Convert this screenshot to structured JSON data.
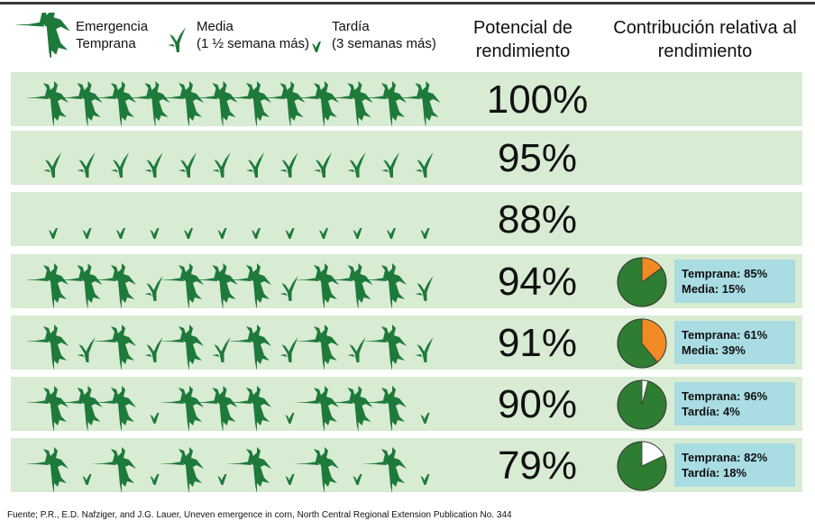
{
  "legend": [
    {
      "type": "E",
      "line1": "Emergencia",
      "line2": "Temprana"
    },
    {
      "type": "M",
      "line1": "Media",
      "line2": "(1 ½ semana más)"
    },
    {
      "type": "L",
      "line1": "Tardía",
      "line2": "(3 semanas más)"
    }
  ],
  "headers": {
    "potential": "Potencial de rendimiento",
    "contribution": "Contribución relativa al rendimiento"
  },
  "colors": {
    "row_bg": "#d8ebd3",
    "plant": "#1e7a3a",
    "pie_green": "#2e7d32",
    "pie_orange": "#f08a24",
    "pie_white": "#ffffff",
    "info_bg": "#a9dce3"
  },
  "rows": [
    {
      "plants": "EEEEEEEEEEEE",
      "yield": "100%"
    },
    {
      "plants": "MMMMMMMMMMMM",
      "yield": "95%"
    },
    {
      "plants": "LLLLLLLLLLLL",
      "yield": "88%"
    },
    {
      "plants": "EEEMEEEMEEEM",
      "yield": "94%",
      "pie": {
        "early": 85,
        "other": 15,
        "other_type": "media"
      },
      "info": [
        "Temprana: 85%",
        "Media: 15%"
      ]
    },
    {
      "plants": "EMEMEMEMEMEM",
      "yield": "91%",
      "pie": {
        "early": 61,
        "other": 39,
        "other_type": "media"
      },
      "info": [
        "Temprana: 61%",
        "Media: 39%"
      ]
    },
    {
      "plants": "EEELEEELEEEL",
      "yield": "90%",
      "pie": {
        "early": 96,
        "other": 4,
        "other_type": "tardia"
      },
      "info": [
        "Temprana: 96%",
        "Tardía: 4%"
      ]
    },
    {
      "plants": "ELELELELELEL",
      "yield": "79%",
      "pie": {
        "early": 82,
        "other": 18,
        "other_type": "tardia"
      },
      "info": [
        "Temprana: 82%",
        "Tardía: 18%"
      ]
    }
  ],
  "footer": "Fuente; P.R., E.D. Nafziger, and J.G. Lauer, Uneven emergence in corn, North Central Regional Extension Publication No. 344"
}
